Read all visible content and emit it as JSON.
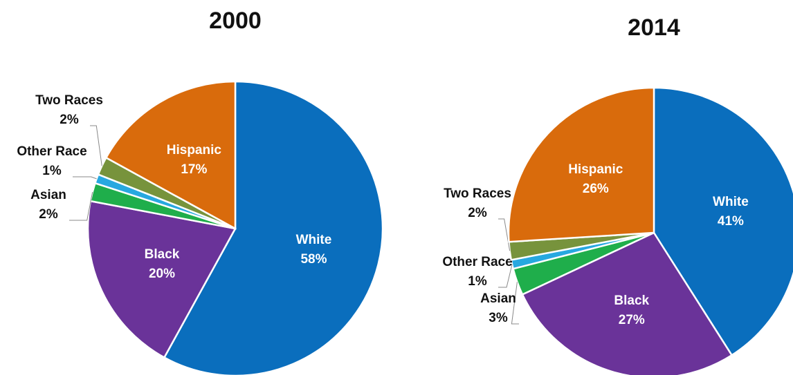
{
  "chart_data": [
    {
      "type": "pie",
      "title": "2000",
      "categories": [
        "White",
        "Black",
        "Asian",
        "Other Race",
        "Two Races",
        "Hispanic"
      ],
      "values": [
        58,
        20,
        2,
        1,
        2,
        17
      ],
      "value_labels": [
        "58%",
        "20%",
        "2%",
        "1%",
        "2%",
        "17%"
      ],
      "colors": [
        "#0a6ebd",
        "#6a3399",
        "#1fae4b",
        "#27a8e0",
        "#77933c",
        "#d96b0c"
      ]
    },
    {
      "type": "pie",
      "title": "2014",
      "categories": [
        "White",
        "Black",
        "Asian",
        "Other Race",
        "Two Races",
        "Hispanic"
      ],
      "values": [
        41,
        27,
        3,
        1,
        2,
        26
      ],
      "value_labels": [
        "41%",
        "27%",
        "3%",
        "1%",
        "2%",
        "26%"
      ],
      "colors": [
        "#0a6ebd",
        "#6a3399",
        "#1fae4b",
        "#27a8e0",
        "#77933c",
        "#d96b0c"
      ]
    }
  ]
}
